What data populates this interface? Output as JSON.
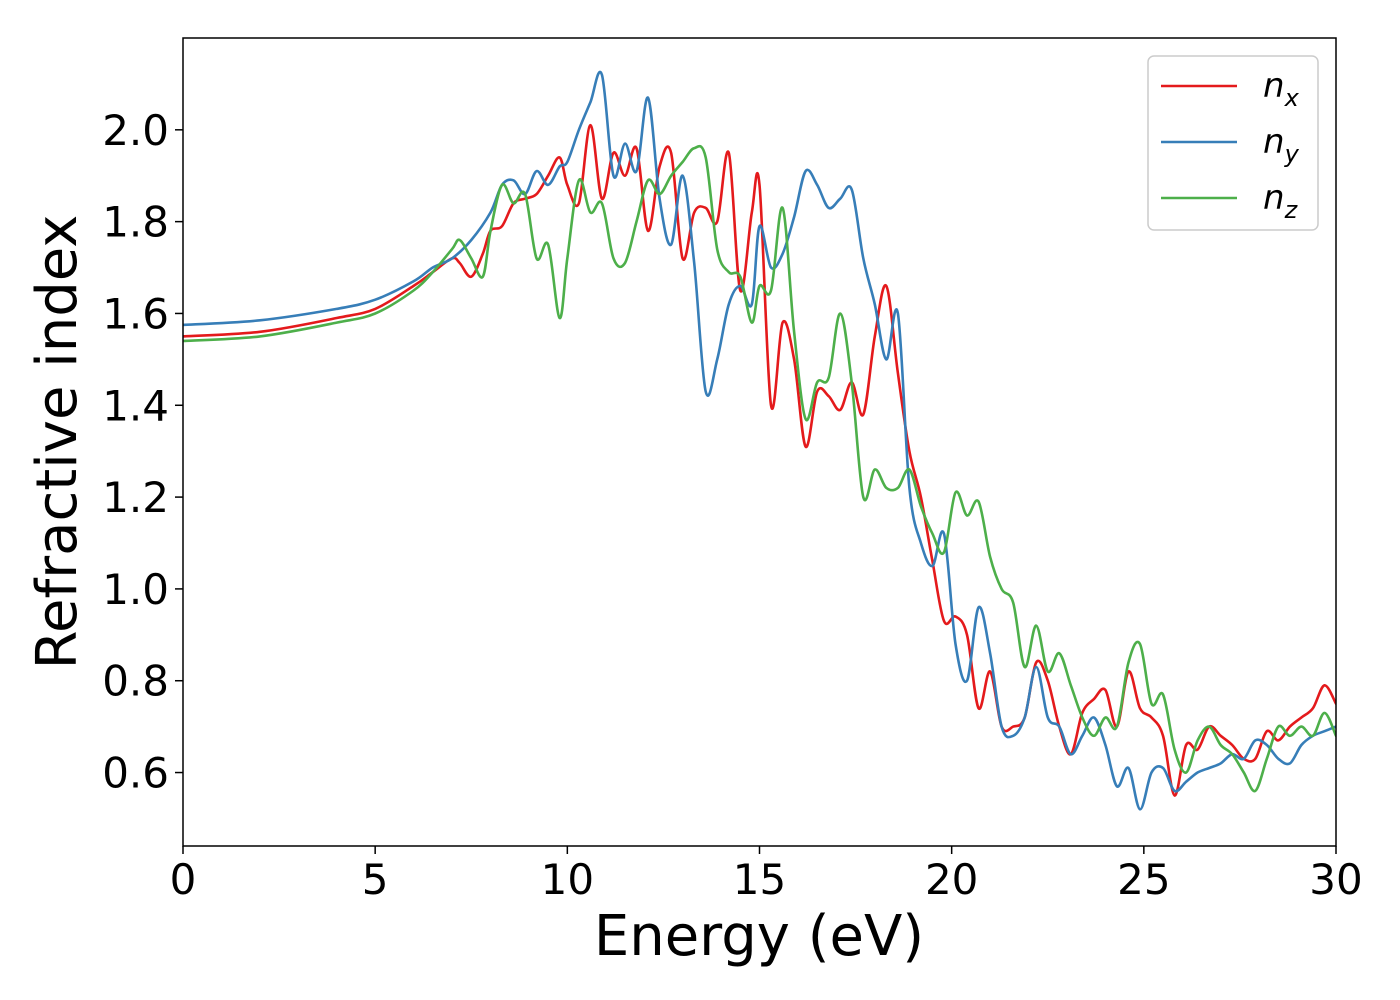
{
  "chart_data": {
    "type": "line",
    "xlabel": "Energy (eV)",
    "ylabel": "Refractive index",
    "xlim": [
      0,
      30
    ],
    "ylim": [
      0.44,
      2.2
    ],
    "xticks": [
      0,
      5,
      10,
      15,
      20,
      25,
      30
    ],
    "xtick_labels": [
      "0",
      "5",
      "10",
      "15",
      "20",
      "25",
      "30"
    ],
    "yticks": [
      0.6,
      0.8,
      1.0,
      1.2,
      1.4,
      1.6,
      1.8,
      2.0
    ],
    "ytick_labels": [
      "0.6",
      "0.8",
      "1.0",
      "1.2",
      "1.4",
      "1.6",
      "1.8",
      "2.0"
    ],
    "grid": false,
    "legend_position": "top-right",
    "series": [
      {
        "name": "n_x",
        "label_base": "n",
        "label_sub": "x",
        "color": "#e41a1c",
        "x": [
          0,
          2,
          4,
          5,
          6,
          6.5,
          7.0,
          7.2,
          7.5,
          7.8,
          8.0,
          8.3,
          8.6,
          8.9,
          9.2,
          9.5,
          9.8,
          10.0,
          10.3,
          10.6,
          10.9,
          11.2,
          11.5,
          11.8,
          12.1,
          12.4,
          12.7,
          13.0,
          13.3,
          13.6,
          13.9,
          14.2,
          14.5,
          14.8,
          15.0,
          15.3,
          15.6,
          15.9,
          16.2,
          16.5,
          16.8,
          17.1,
          17.4,
          17.7,
          18.0,
          18.3,
          18.6,
          18.9,
          19.2,
          19.5,
          19.8,
          20.1,
          20.4,
          20.7,
          21.0,
          21.3,
          21.6,
          21.9,
          22.2,
          22.5,
          22.8,
          23.1,
          23.4,
          23.7,
          24.0,
          24.3,
          24.6,
          24.9,
          25.2,
          25.5,
          25.8,
          26.1,
          26.4,
          26.7,
          27.0,
          27.3,
          27.6,
          27.9,
          28.2,
          28.5,
          28.8,
          29.1,
          29.4,
          29.7,
          30.0
        ],
        "y": [
          1.55,
          1.56,
          1.59,
          1.61,
          1.66,
          1.69,
          1.72,
          1.71,
          1.68,
          1.73,
          1.78,
          1.79,
          1.84,
          1.85,
          1.86,
          1.9,
          1.94,
          1.88,
          1.84,
          2.01,
          1.85,
          1.95,
          1.9,
          1.96,
          1.78,
          1.92,
          1.95,
          1.72,
          1.82,
          1.83,
          1.8,
          1.95,
          1.65,
          1.82,
          1.88,
          1.4,
          1.58,
          1.5,
          1.31,
          1.43,
          1.42,
          1.39,
          1.45,
          1.38,
          1.55,
          1.66,
          1.47,
          1.3,
          1.2,
          1.06,
          0.93,
          0.94,
          0.9,
          0.74,
          0.82,
          0.7,
          0.7,
          0.72,
          0.84,
          0.8,
          0.7,
          0.64,
          0.73,
          0.76,
          0.78,
          0.7,
          0.82,
          0.74,
          0.72,
          0.68,
          0.55,
          0.66,
          0.65,
          0.7,
          0.68,
          0.66,
          0.63,
          0.63,
          0.69,
          0.67,
          0.7,
          0.72,
          0.74,
          0.79,
          0.75
        ]
      },
      {
        "name": "n_y",
        "label_base": "n",
        "label_sub": "y",
        "color": "#377eb8",
        "x": [
          0,
          2,
          4,
          5,
          6,
          6.5,
          7.0,
          7.5,
          8.0,
          8.3,
          8.6,
          8.9,
          9.2,
          9.5,
          9.8,
          10.0,
          10.3,
          10.6,
          10.9,
          11.2,
          11.5,
          11.8,
          12.1,
          12.4,
          12.7,
          13.0,
          13.3,
          13.6,
          13.9,
          14.2,
          14.5,
          14.8,
          15.0,
          15.3,
          15.6,
          15.9,
          16.2,
          16.5,
          16.8,
          17.1,
          17.4,
          17.7,
          18.0,
          18.3,
          18.6,
          18.9,
          19.2,
          19.5,
          19.8,
          20.1,
          20.4,
          20.7,
          21.0,
          21.3,
          21.6,
          21.9,
          22.2,
          22.5,
          22.8,
          23.1,
          23.4,
          23.7,
          24.0,
          24.3,
          24.6,
          24.9,
          25.2,
          25.5,
          25.8,
          26.1,
          26.4,
          26.7,
          27.0,
          27.3,
          27.6,
          27.9,
          28.2,
          28.5,
          28.8,
          29.1,
          29.4,
          29.7,
          30.0
        ],
        "y": [
          1.575,
          1.585,
          1.61,
          1.63,
          1.67,
          1.7,
          1.72,
          1.76,
          1.82,
          1.88,
          1.89,
          1.86,
          1.91,
          1.88,
          1.92,
          1.93,
          2.0,
          2.06,
          2.12,
          1.9,
          1.97,
          1.91,
          2.07,
          1.85,
          1.75,
          1.9,
          1.71,
          1.43,
          1.5,
          1.62,
          1.66,
          1.62,
          1.79,
          1.7,
          1.73,
          1.81,
          1.91,
          1.88,
          1.83,
          1.85,
          1.87,
          1.72,
          1.62,
          1.5,
          1.6,
          1.22,
          1.1,
          1.05,
          1.12,
          0.88,
          0.8,
          0.96,
          0.86,
          0.7,
          0.68,
          0.72,
          0.83,
          0.72,
          0.7,
          0.64,
          0.68,
          0.72,
          0.66,
          0.57,
          0.61,
          0.52,
          0.6,
          0.61,
          0.56,
          0.58,
          0.6,
          0.61,
          0.62,
          0.64,
          0.63,
          0.67,
          0.66,
          0.63,
          0.62,
          0.66,
          0.68,
          0.69,
          0.7
        ]
      },
      {
        "name": "n_z",
        "label_base": "n",
        "label_sub": "z",
        "color": "#4daf4a",
        "x": [
          0,
          2,
          4,
          5,
          6,
          6.5,
          7.0,
          7.2,
          7.5,
          7.8,
          8.0,
          8.3,
          8.6,
          8.9,
          9.2,
          9.5,
          9.8,
          10.0,
          10.3,
          10.6,
          10.9,
          11.2,
          11.5,
          11.8,
          12.1,
          12.4,
          12.7,
          13.0,
          13.3,
          13.6,
          13.9,
          14.2,
          14.5,
          14.8,
          15.0,
          15.3,
          15.6,
          15.9,
          16.2,
          16.5,
          16.8,
          17.1,
          17.4,
          17.7,
          18.0,
          18.3,
          18.6,
          18.9,
          19.2,
          19.5,
          19.8,
          20.1,
          20.4,
          20.7,
          21.0,
          21.3,
          21.6,
          21.9,
          22.2,
          22.5,
          22.8,
          23.1,
          23.4,
          23.7,
          24.0,
          24.3,
          24.6,
          24.9,
          25.2,
          25.5,
          25.8,
          26.1,
          26.4,
          26.7,
          27.0,
          27.3,
          27.6,
          27.9,
          28.2,
          28.5,
          28.8,
          29.1,
          29.4,
          29.7,
          30.0
        ],
        "y": [
          1.54,
          1.55,
          1.58,
          1.6,
          1.65,
          1.69,
          1.74,
          1.76,
          1.72,
          1.68,
          1.78,
          1.88,
          1.84,
          1.86,
          1.72,
          1.75,
          1.59,
          1.72,
          1.89,
          1.82,
          1.84,
          1.72,
          1.71,
          1.8,
          1.89,
          1.86,
          1.9,
          1.93,
          1.96,
          1.94,
          1.74,
          1.69,
          1.68,
          1.58,
          1.66,
          1.65,
          1.83,
          1.56,
          1.37,
          1.45,
          1.46,
          1.6,
          1.45,
          1.2,
          1.26,
          1.22,
          1.22,
          1.26,
          1.18,
          1.12,
          1.08,
          1.21,
          1.16,
          1.19,
          1.07,
          1.0,
          0.97,
          0.83,
          0.92,
          0.82,
          0.86,
          0.79,
          0.72,
          0.68,
          0.72,
          0.7,
          0.84,
          0.88,
          0.75,
          0.77,
          0.65,
          0.6,
          0.67,
          0.7,
          0.66,
          0.64,
          0.6,
          0.56,
          0.63,
          0.7,
          0.68,
          0.7,
          0.68,
          0.73,
          0.68
        ]
      }
    ]
  }
}
